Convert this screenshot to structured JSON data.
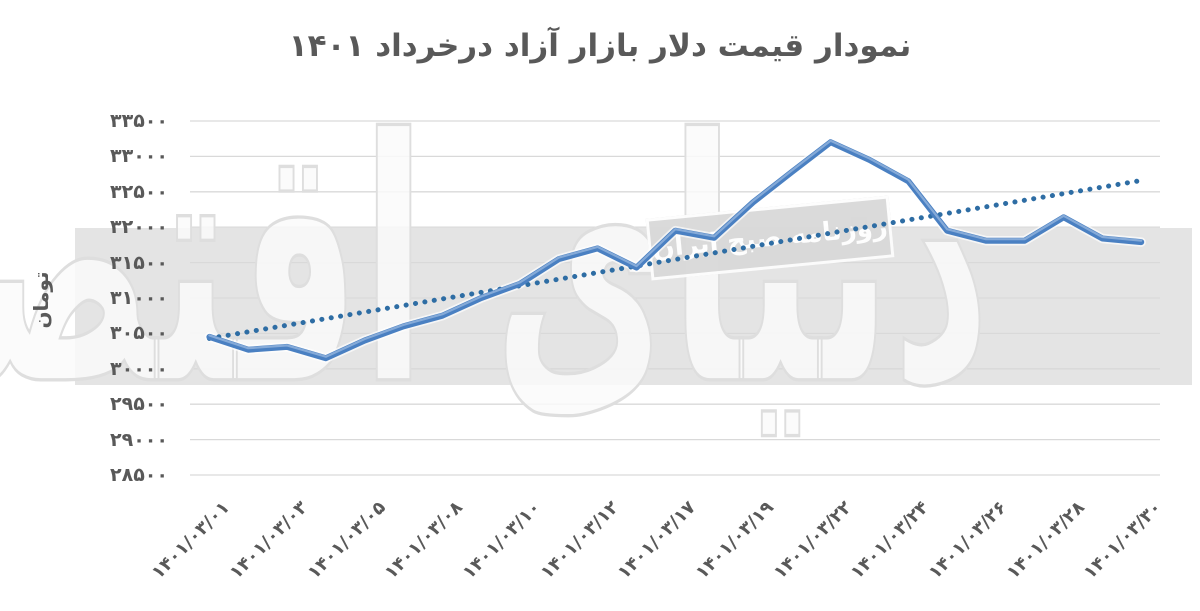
{
  "title": "نمودار قیمت دلار بازار آزاد درخرداد ۱۴۰۱",
  "y_axis": {
    "title": "تومان",
    "ticks": [
      "۳۳۵۰۰",
      "۳۳۰۰۰",
      "۳۲۵۰۰",
      "۳۲۰۰۰",
      "۳۱۵۰۰",
      "۳۱۰۰۰",
      "۳۰۵۰۰",
      "۳۰۰۰۰",
      "۲۹۵۰۰",
      "۲۹۰۰۰",
      "۲۸۵۰۰"
    ],
    "tick_values": [
      33500,
      33000,
      32500,
      32000,
      31500,
      31000,
      30500,
      30000,
      29500,
      29000,
      28500
    ]
  },
  "x_axis": {
    "labels": [
      "۱۴۰۱/۰۳/۰۱",
      "۱۴۰۱/۰۳/۰۳",
      "۱۴۰۱/۰۳/۰۵",
      "۱۴۰۱/۰۳/۰۸",
      "۱۴۰۱/۰۳/۱۰",
      "۱۴۰۱/۰۳/۱۲",
      "۱۴۰۱/۰۳/۱۷",
      "۱۴۰۱/۰۳/۱۹",
      "۱۴۰۱/۰۳/۲۲",
      "۱۴۰۱/۰۳/۲۴",
      "۱۴۰۱/۰۳/۲۶",
      "۱۴۰۱/۰۳/۲۸",
      "۱۴۰۱/۰۳/۳۰"
    ]
  },
  "watermarks": {
    "background_text": "دنیای اقتصاد",
    "band_text": "روزنامه صبح ایران"
  },
  "colors": {
    "title_text": "#595959",
    "axis_text": "#595959",
    "grid": "#d9d9d9",
    "band": "#e4e4e4",
    "line": "#4a80c2",
    "line_highlight": "#8fb2dc",
    "line_casing": "#ffffff",
    "trendline": "#2e6da4"
  },
  "chart_data": {
    "type": "line",
    "title": "نمودار قیمت دلار بازار آزاد درخرداد ۱۴۰۱",
    "xlabel": "",
    "ylabel": "تومان",
    "ylim": [
      28500,
      33500
    ],
    "y_tick_step": 500,
    "grid": "horizontal",
    "legend": "none",
    "categories": [
      "۱۴۰۱/۰۳/۰۱",
      "۱۴۰۱/۰۳/۰۳",
      "۱۴۰۱/۰۳/۰۵",
      "۱۴۰۱/۰۳/۰۸",
      "۱۴۰۱/۰۳/۱۰",
      "۱۴۰۱/۰۳/۱۲",
      "۱۴۰۱/۰۳/۱۷",
      "۱۴۰۱/۰۳/۱۹",
      "۱۴۰۱/۰۳/۲۲",
      "۱۴۰۱/۰۳/۲۴",
      "۱۴۰۱/۰۳/۲۶",
      "۱۴۰۱/۰۳/۲۸",
      "۱۴۰۱/۰۳/۳۰"
    ],
    "label_every": 2,
    "series": [
      {
        "values": [
          30450,
          30270,
          30310,
          30150,
          30400,
          30600,
          30750,
          31000,
          31200,
          31550,
          31700,
          31430,
          31950,
          31850,
          32350,
          32780,
          33200,
          32950,
          32650,
          31950,
          31810,
          31810,
          32140,
          31840,
          31790
        ]
      }
    ],
    "trendline": {
      "type": "linear",
      "style": "dotted",
      "start_value": 30430,
      "end_value": 32660
    }
  }
}
